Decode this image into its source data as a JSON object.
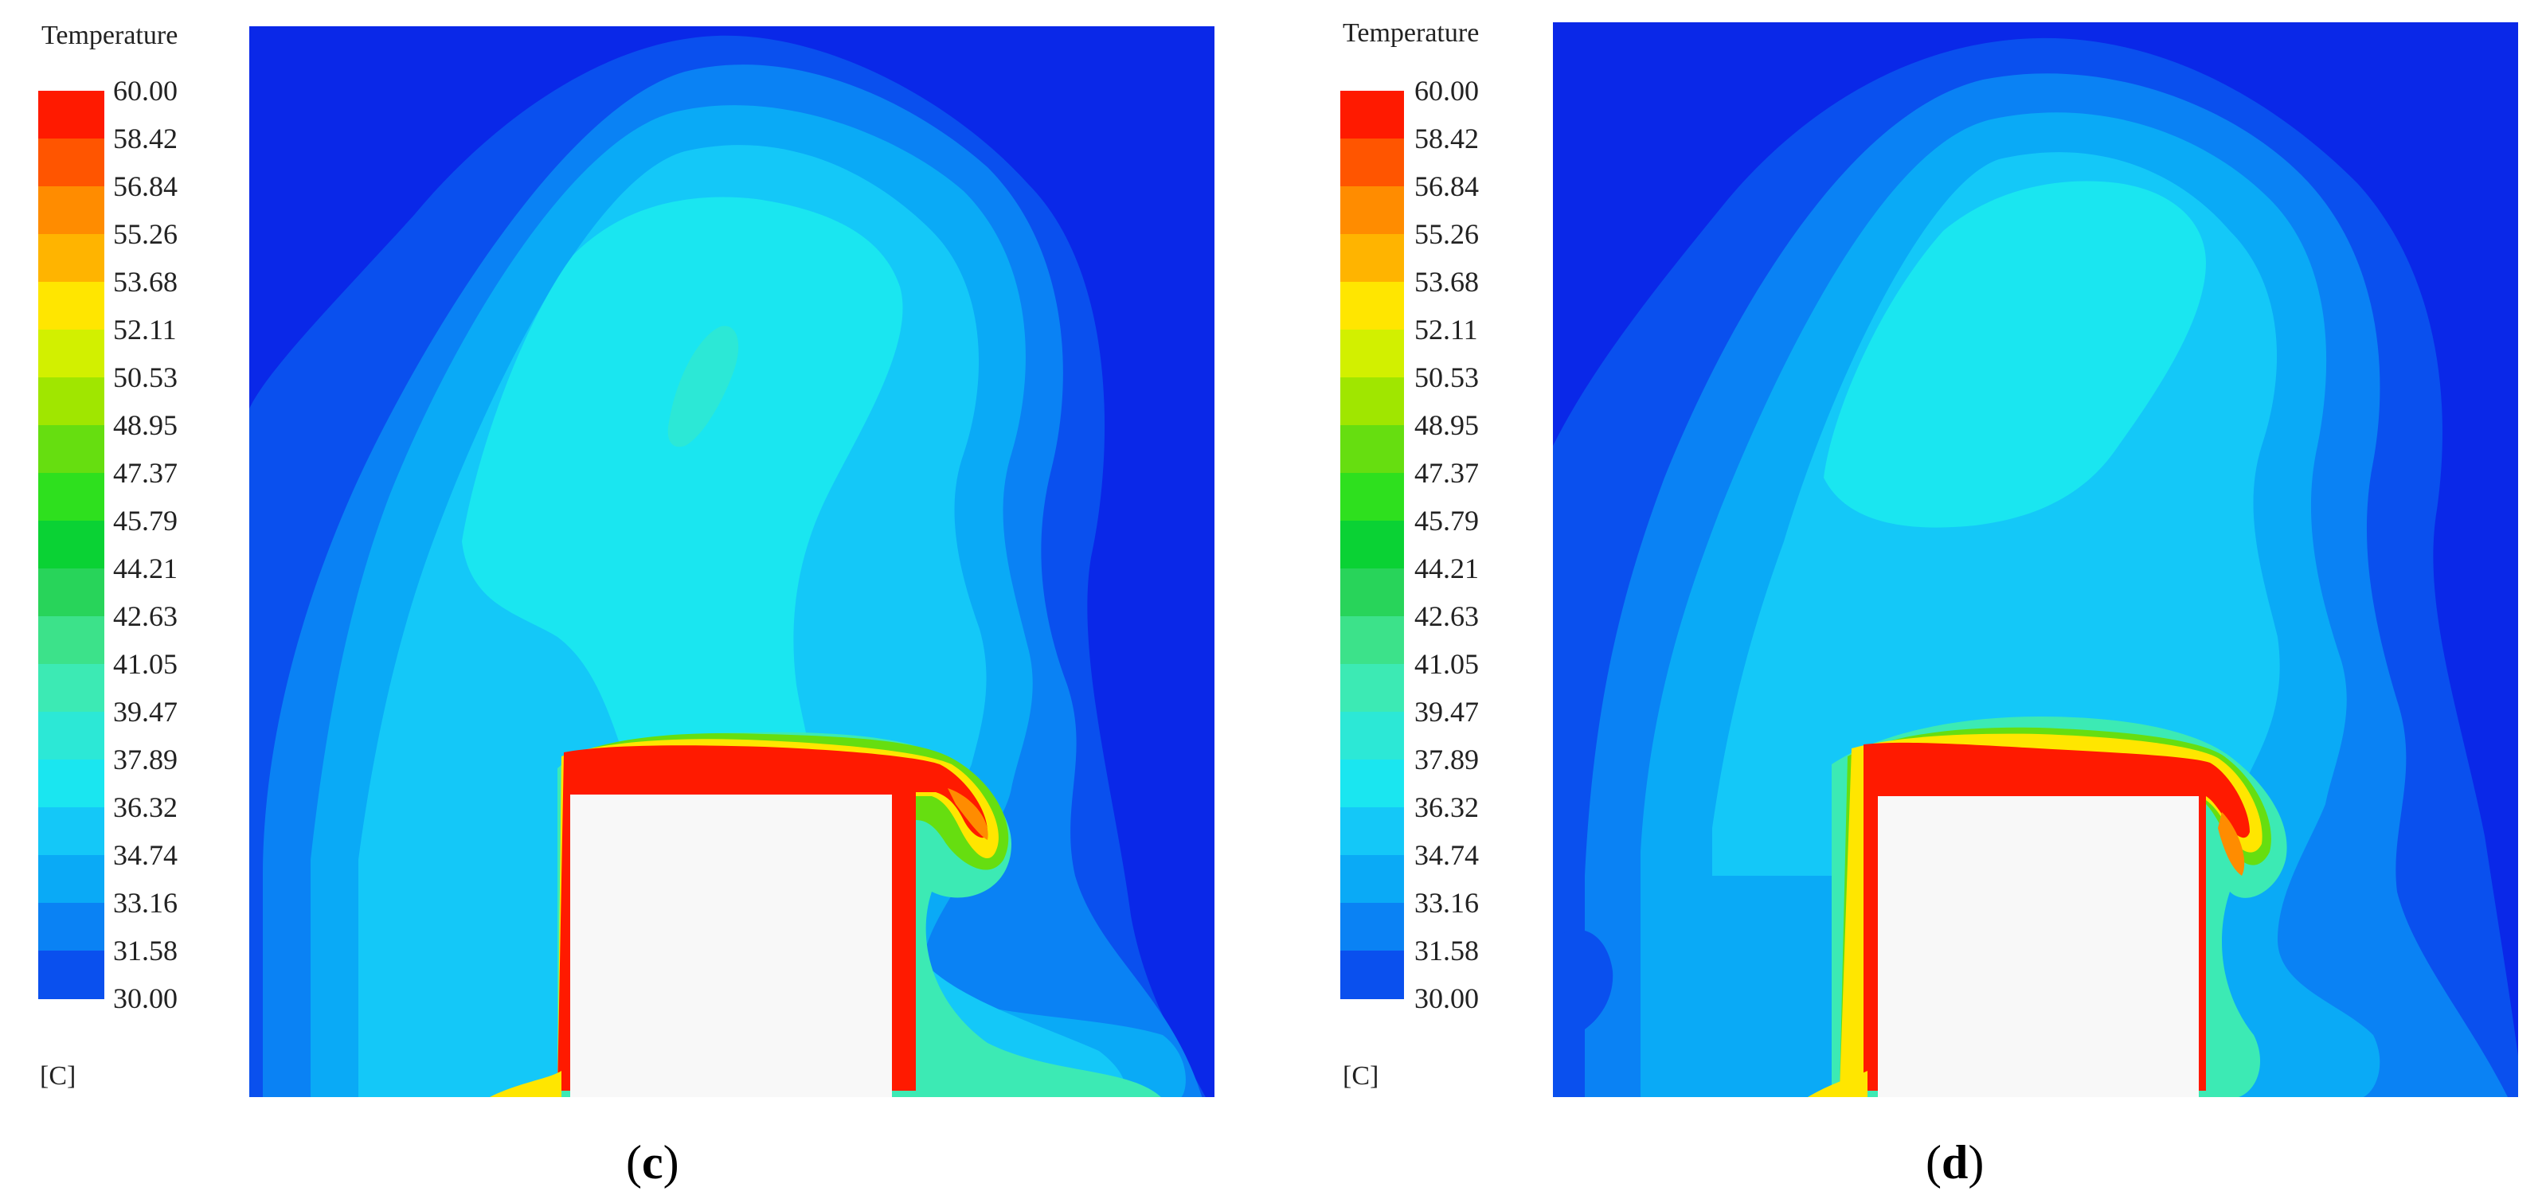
{
  "colorbar": {
    "title": "Temperature",
    "unit": "[C]",
    "labels": [
      "60.00",
      "58.42",
      "56.84",
      "55.26",
      "53.68",
      "52.11",
      "50.53",
      "48.95",
      "47.37",
      "45.79",
      "44.21",
      "42.63",
      "41.05",
      "39.47",
      "37.89",
      "36.32",
      "34.74",
      "33.16",
      "31.58",
      "30.00"
    ],
    "colors": [
      "#ff1a00",
      "#ff5500",
      "#ff8c00",
      "#ffb400",
      "#ffe600",
      "#d2f000",
      "#a0e600",
      "#66de10",
      "#2ee01e",
      "#0ad234",
      "#28d45a",
      "#3ce28a",
      "#3ceab4",
      "#2ce8d6",
      "#1ae6f0",
      "#14c8f8",
      "#0aaaf6",
      "#0a82f4",
      "#0a50ee",
      "#0a28e8"
    ]
  },
  "panels": [
    {
      "id": "c",
      "label": "(c)",
      "label_letter": "c"
    },
    {
      "id": "d",
      "label": "(d)",
      "label_letter": "d"
    }
  ],
  "field_colors": {
    "background_blue": "#0a28e8",
    "hot_red": "#ff1a00",
    "obstacle_white": "#f8f8f8"
  }
}
